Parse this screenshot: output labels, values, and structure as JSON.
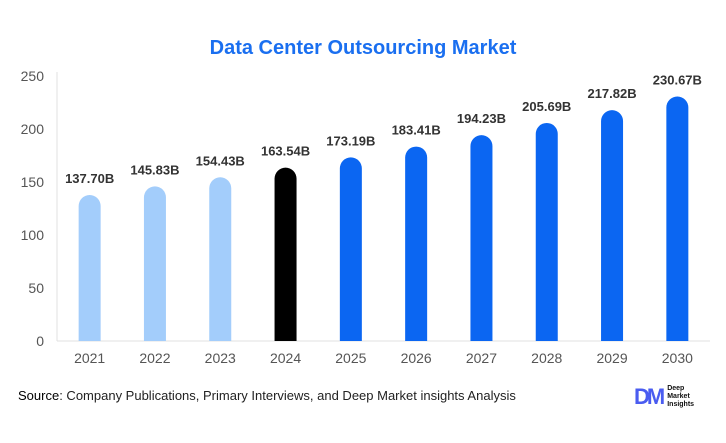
{
  "chart_data": {
    "type": "bar",
    "title": "Data Center Outsourcing Market",
    "categories": [
      "2021",
      "2022",
      "2023",
      "2024",
      "2025",
      "2026",
      "2027",
      "2028",
      "2029",
      "2030"
    ],
    "values": [
      137.7,
      145.83,
      154.43,
      163.54,
      173.19,
      183.41,
      194.23,
      205.69,
      217.82,
      230.67
    ],
    "data_labels": [
      "137.70B",
      "145.83B",
      "154.43B",
      "163.54B",
      "173.19B",
      "183.41B",
      "194.23B",
      "205.69B",
      "217.82B",
      "230.67B"
    ],
    "ylim": [
      0,
      250
    ],
    "yticks": [
      "0",
      "50",
      "100",
      "150",
      "200",
      "250"
    ],
    "grid": false,
    "colors": {
      "historical": "#a3cdfb",
      "current": "#000000",
      "forecast": "#0b66f2"
    },
    "bar_kind": [
      "historical",
      "historical",
      "historical",
      "current",
      "forecast",
      "forecast",
      "forecast",
      "forecast",
      "forecast",
      "forecast"
    ]
  },
  "source": {
    "label": "Source",
    "text": ": Company Publications, Primary Interviews, and Deep Market insights Analysis"
  },
  "logo": {
    "mark": "DM",
    "lines": [
      "Deep",
      "Market",
      "Insights"
    ]
  }
}
